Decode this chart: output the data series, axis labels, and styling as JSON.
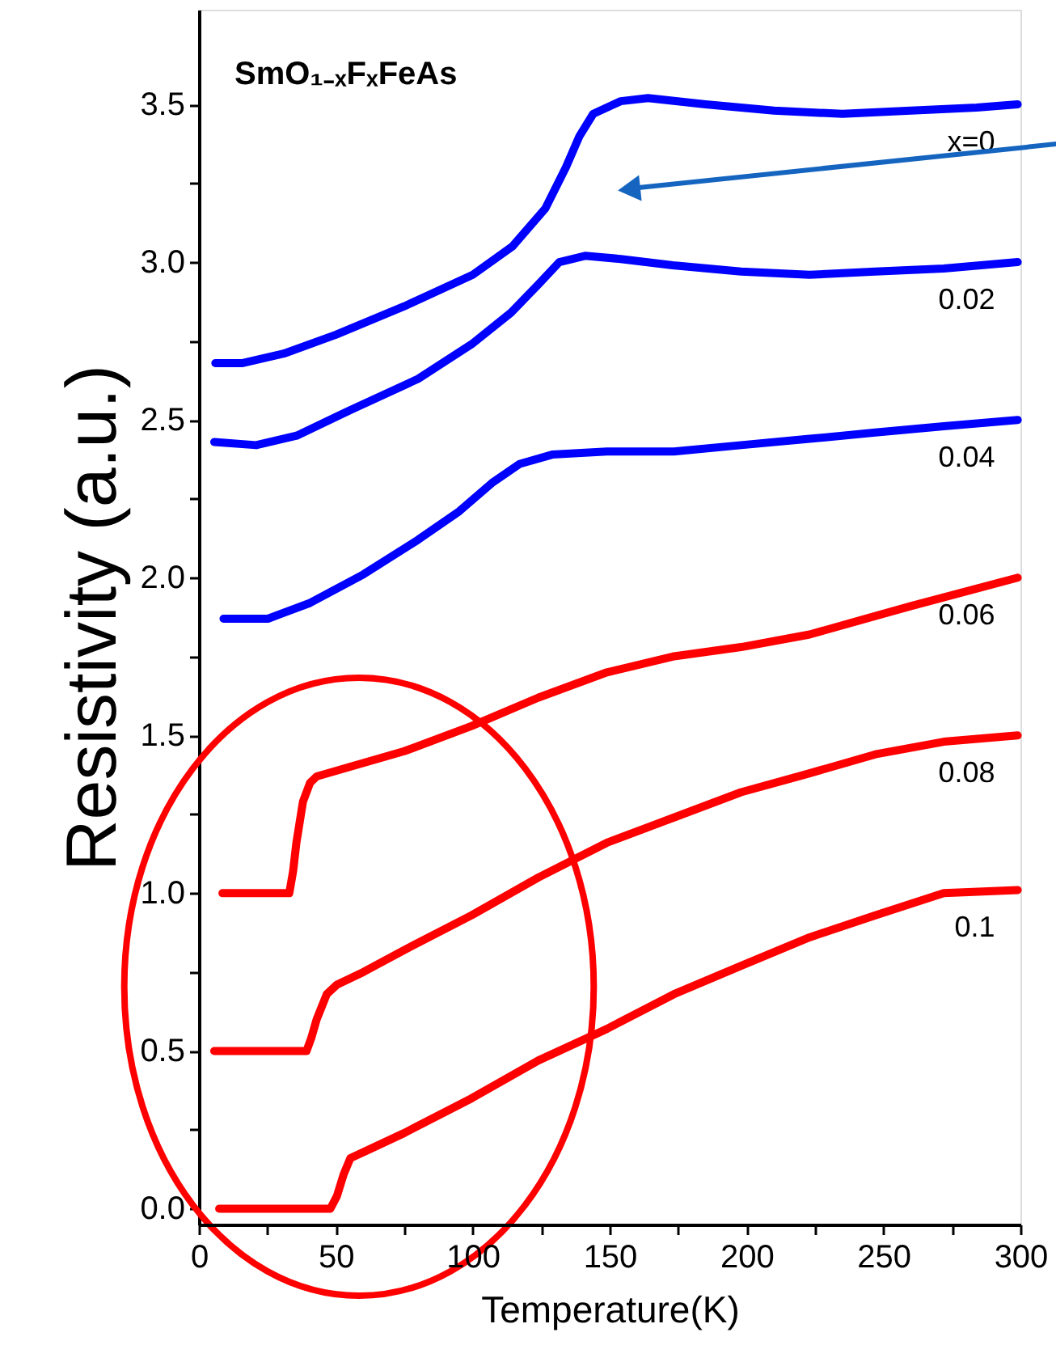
{
  "chart_data": {
    "type": "line",
    "title": "SmO₁₋ₓFₓFeAs",
    "xlabel": "Temperature(K)",
    "ylabel": "Resistivity (a.u.)",
    "xlim": [
      0,
      300
    ],
    "ylim": [
      -0.05,
      3.8
    ],
    "xticks": [
      0,
      {
        "value": 25,
        "label": null
      },
      50,
      {
        "value": 75,
        "label": null
      },
      100,
      {
        "value": 125,
        "label": null
      },
      150,
      {
        "value": 175,
        "label": null
      },
      200,
      {
        "value": 225,
        "label": null
      },
      250,
      {
        "value": 275,
        "label": null
      },
      300
    ],
    "yticks": [
      {
        "value": 0,
        "label": "0.0"
      },
      {
        "value": 0.25,
        "label": null
      },
      0.5,
      {
        "value": 0.75,
        "label": null
      },
      {
        "value": 1,
        "label": "1.0"
      },
      {
        "value": 1.25,
        "label": null
      },
      1.5,
      {
        "value": 1.75,
        "label": null
      },
      {
        "value": 2,
        "label": "2.0"
      },
      {
        "value": 2.25,
        "label": null
      },
      2.5,
      {
        "value": 2.75,
        "label": null
      },
      {
        "value": 3,
        "label": "3.0"
      },
      {
        "value": 3.25,
        "label": null
      },
      3.5
    ],
    "grid": false,
    "line_style": "solid",
    "marker": "none",
    "series": [
      {
        "name": "x=0",
        "color": "#0000ff",
        "x": [
          6,
          16,
          31,
          50,
          75,
          100,
          114.5,
          126.5,
          134,
          139,
          144,
          154,
          164,
          185,
          210,
          235,
          260,
          284,
          299
        ],
        "values": [
          2.68,
          2.68,
          2.71,
          2.77,
          2.86,
          2.96,
          3.05,
          3.17,
          3.3,
          3.4,
          3.47,
          3.51,
          3.52,
          3.5,
          3.48,
          3.47,
          3.48,
          3.49,
          3.5
        ]
      },
      {
        "name": "0.02",
        "color": "#0000ff",
        "x": [
          5.6,
          20.9,
          35.7,
          55,
          80,
          99.6,
          114,
          124,
          131.6,
          141,
          154,
          173,
          198,
          223,
          247,
          272,
          299
        ],
        "values": [
          2.43,
          2.42,
          2.45,
          2.53,
          2.63,
          2.74,
          2.84,
          2.93,
          3.0,
          3.02,
          3.01,
          2.99,
          2.97,
          2.96,
          2.97,
          2.98,
          3.0
        ]
      },
      {
        "name": "0.04",
        "color": "#0000ff",
        "x": [
          9,
          25.2,
          40.6,
          60,
          80,
          95,
          107,
          117,
          129,
          149,
          173.5,
          198,
          223,
          247,
          272,
          299
        ],
        "values": [
          1.87,
          1.87,
          1.92,
          2.01,
          2.12,
          2.21,
          2.3,
          2.36,
          2.39,
          2.4,
          2.4,
          2.42,
          2.44,
          2.46,
          2.48,
          2.5
        ]
      },
      {
        "name": "0.06",
        "color": "#ff0000",
        "x": [
          8.6,
          33,
          34.4,
          35.6,
          38,
          40.6,
          43,
          55,
          75,
          99.6,
          124,
          149,
          173,
          198,
          223,
          260,
          299
        ],
        "values": [
          1.0,
          1.0,
          1.07,
          1.16,
          1.29,
          1.35,
          1.37,
          1.4,
          1.45,
          1.53,
          1.62,
          1.7,
          1.75,
          1.78,
          1.82,
          1.91,
          2.0
        ]
      },
      {
        "name": "0.08",
        "color": "#ff0000",
        "x": [
          5.6,
          25.8,
          39.3,
          41,
          43,
          46.7,
          50.4,
          60,
          75,
          99.6,
          124,
          149,
          173.5,
          198,
          223,
          247,
          272,
          299
        ],
        "values": [
          0.5,
          0.5,
          0.5,
          0.54,
          0.6,
          0.68,
          0.71,
          0.75,
          0.82,
          0.93,
          1.05,
          1.16,
          1.24,
          1.32,
          1.38,
          1.44,
          1.48,
          1.5
        ]
      },
      {
        "name": "0.1",
        "color": "#ff0000",
        "x": [
          7.4,
          48,
          50.4,
          52.9,
          55.3,
          62.7,
          75,
          99.6,
          124,
          149,
          173.5,
          198,
          223,
          247,
          272,
          299
        ],
        "values": [
          0.0,
          0.0,
          0.04,
          0.11,
          0.16,
          0.19,
          0.24,
          0.35,
          0.47,
          0.57,
          0.68,
          0.77,
          0.86,
          0.93,
          1.0,
          1.01
        ]
      }
    ]
  }
}
